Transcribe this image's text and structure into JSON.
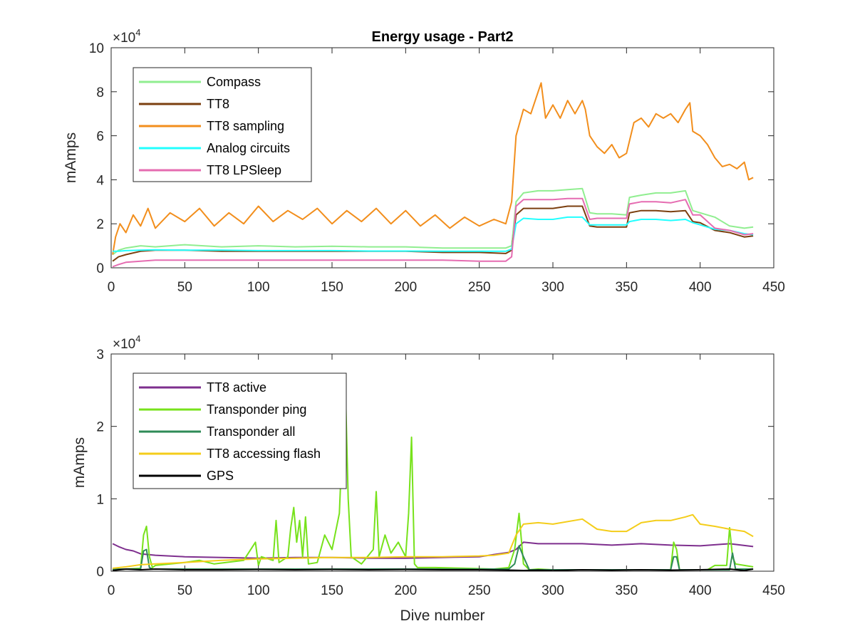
{
  "chart_data": [
    {
      "type": "line",
      "title": "Energy usage - Part2",
      "xlabel": "",
      "ylabel": "mAmps",
      "xlim": [
        0,
        450
      ],
      "ylim": [
        0,
        100000
      ],
      "xticks": [
        0,
        50,
        100,
        150,
        200,
        250,
        300,
        350,
        400,
        450
      ],
      "yticks": [
        0,
        2,
        4,
        6,
        8,
        10
      ],
      "ytick_scale": "×10^4",
      "grid": false,
      "legend_position": "top-left",
      "series": [
        {
          "name": "Compass",
          "color": "#90ee90",
          "x": [
            1,
            5,
            10,
            20,
            30,
            50,
            75,
            100,
            125,
            150,
            175,
            200,
            225,
            250,
            268,
            272,
            275,
            280,
            290,
            300,
            310,
            320,
            325,
            330,
            340,
            350,
            352,
            360,
            370,
            380,
            390,
            395,
            400,
            410,
            420,
            430,
            436
          ],
          "y": [
            6000,
            8000,
            9000,
            10000,
            9500,
            10500,
            9500,
            10000,
            9500,
            9800,
            9500,
            9500,
            9000,
            9000,
            9000,
            10000,
            30000,
            34000,
            35000,
            35000,
            35500,
            36000,
            25000,
            24500,
            24500,
            24000,
            32000,
            33000,
            34000,
            34000,
            35000,
            26000,
            25000,
            23000,
            19000,
            18000,
            18500
          ]
        },
        {
          "name": "TT8",
          "color": "#7b3f0f",
          "x": [
            1,
            5,
            10,
            20,
            30,
            50,
            75,
            100,
            125,
            150,
            175,
            200,
            225,
            250,
            268,
            272,
            275,
            280,
            290,
            300,
            310,
            320,
            325,
            330,
            340,
            350,
            352,
            360,
            370,
            380,
            390,
            395,
            400,
            410,
            420,
            430,
            436
          ],
          "y": [
            3000,
            5000,
            6000,
            7500,
            8000,
            8000,
            7500,
            7500,
            7500,
            7500,
            7500,
            7500,
            7000,
            7000,
            6500,
            8000,
            24000,
            27000,
            27000,
            27000,
            28000,
            28000,
            19000,
            18500,
            18500,
            18500,
            25000,
            26000,
            26000,
            25500,
            26000,
            21000,
            20500,
            17000,
            16000,
            14000,
            14500
          ]
        },
        {
          "name": "TT8 sampling",
          "color": "#f28e1c",
          "x": [
            1,
            3,
            6,
            10,
            15,
            20,
            25,
            30,
            40,
            50,
            60,
            70,
            80,
            90,
            100,
            110,
            120,
            130,
            140,
            150,
            160,
            170,
            180,
            190,
            200,
            210,
            220,
            230,
            240,
            250,
            260,
            268,
            272,
            275,
            280,
            285,
            290,
            292,
            295,
            300,
            305,
            310,
            315,
            320,
            322,
            325,
            330,
            335,
            340,
            345,
            350,
            355,
            360,
            365,
            370,
            375,
            380,
            385,
            390,
            393,
            395,
            400,
            405,
            410,
            415,
            420,
            425,
            430,
            433,
            436
          ],
          "y": [
            6000,
            14000,
            20000,
            16000,
            24000,
            19000,
            27000,
            18000,
            25000,
            21000,
            27000,
            19000,
            25000,
            20000,
            28000,
            21000,
            26000,
            22000,
            27000,
            20000,
            26000,
            21000,
            27000,
            20000,
            26000,
            19000,
            24000,
            18000,
            23000,
            19000,
            22000,
            20000,
            30000,
            60000,
            72000,
            70000,
            80000,
            84000,
            68000,
            74000,
            68000,
            76000,
            70000,
            76000,
            72000,
            60000,
            55000,
            52000,
            56000,
            50000,
            52000,
            66000,
            68000,
            64000,
            70000,
            68000,
            70000,
            66000,
            72000,
            75000,
            62000,
            60000,
            56000,
            50000,
            46000,
            47000,
            45000,
            48000,
            40000,
            41000
          ]
        },
        {
          "name": "Analog circuits",
          "color": "#22ffff",
          "x": [
            1,
            5,
            10,
            20,
            30,
            50,
            75,
            100,
            125,
            150,
            175,
            200,
            225,
            250,
            268,
            272,
            275,
            280,
            290,
            300,
            310,
            320,
            325,
            330,
            340,
            350,
            352,
            360,
            370,
            380,
            390,
            395,
            400,
            410,
            420,
            430,
            436
          ],
          "y": [
            7500,
            7500,
            7800,
            8000,
            8200,
            8000,
            8000,
            7800,
            7800,
            7800,
            7600,
            7600,
            7500,
            7500,
            7500,
            8500,
            20000,
            22500,
            22000,
            22000,
            23000,
            23000,
            19500,
            19500,
            19500,
            19500,
            21000,
            22000,
            22000,
            21500,
            22000,
            20500,
            19500,
            17500,
            17000,
            15500,
            15000
          ]
        },
        {
          "name": "TT8 LPSleep",
          "color": "#e56cb1",
          "x": [
            1,
            5,
            10,
            20,
            30,
            50,
            75,
            100,
            125,
            150,
            175,
            200,
            225,
            250,
            268,
            272,
            275,
            280,
            290,
            300,
            310,
            320,
            325,
            330,
            340,
            350,
            352,
            360,
            370,
            380,
            390,
            395,
            400,
            410,
            420,
            430,
            436
          ],
          "y": [
            500,
            1500,
            2500,
            3000,
            3500,
            3500,
            3500,
            3500,
            3500,
            3500,
            3500,
            3500,
            3500,
            3000,
            3000,
            5000,
            28000,
            31000,
            31000,
            31000,
            31500,
            31500,
            22000,
            22500,
            22500,
            22500,
            29000,
            30000,
            30000,
            29500,
            31000,
            24000,
            24000,
            18000,
            17000,
            15000,
            15500
          ]
        }
      ]
    },
    {
      "type": "line",
      "title": "",
      "xlabel": "Dive number",
      "ylabel": "mAmps",
      "xlim": [
        0,
        450
      ],
      "ylim": [
        0,
        30000
      ],
      "xticks": [
        0,
        50,
        100,
        150,
        200,
        250,
        300,
        350,
        400,
        450
      ],
      "yticks": [
        0,
        1,
        2,
        3
      ],
      "ytick_scale": "×10^4",
      "grid": false,
      "legend_position": "top-left",
      "series": [
        {
          "name": "TT8 active",
          "color": "#7e2f8e",
          "x": [
            1,
            5,
            10,
            15,
            20,
            30,
            50,
            75,
            100,
            125,
            150,
            175,
            200,
            225,
            250,
            260,
            270,
            275,
            280,
            290,
            300,
            320,
            340,
            360,
            380,
            400,
            420,
            436
          ],
          "y": [
            3800,
            3400,
            3000,
            2800,
            2400,
            2200,
            2000,
            1900,
            1800,
            1900,
            1900,
            1800,
            1800,
            1900,
            2000,
            2300,
            2600,
            3000,
            4000,
            3800,
            3800,
            3800,
            3600,
            3800,
            3600,
            3500,
            3800,
            3400
          ]
        },
        {
          "name": "Transponder ping",
          "color": "#77e21b",
          "x": [
            1,
            10,
            20,
            22,
            24,
            26,
            28,
            30,
            50,
            60,
            70,
            90,
            98,
            100,
            102,
            110,
            112,
            114,
            120,
            122,
            124,
            126,
            128,
            130,
            132,
            134,
            140,
            145,
            150,
            155,
            157,
            159,
            161,
            163,
            170,
            178,
            180,
            182,
            186,
            190,
            195,
            200,
            202,
            204,
            206,
            208,
            220,
            240,
            260,
            270,
            274,
            277,
            280,
            284,
            290,
            300,
            340,
            380,
            382,
            384,
            386,
            390,
            400,
            405,
            410,
            418,
            420,
            422,
            424,
            430,
            436
          ],
          "y": [
            200,
            300,
            400,
            5000,
            6200,
            2000,
            500,
            800,
            1200,
            1500,
            1000,
            1500,
            4000,
            800,
            2000,
            1500,
            7000,
            1200,
            2000,
            6000,
            8800,
            4000,
            7000,
            2000,
            7500,
            1000,
            1200,
            5000,
            3000,
            8000,
            18000,
            26000,
            10000,
            2000,
            1000,
            3000,
            11000,
            2000,
            5000,
            2500,
            4000,
            2000,
            8000,
            18500,
            1000,
            500,
            500,
            400,
            300,
            500,
            3000,
            8000,
            1000,
            200,
            300,
            200,
            200,
            200,
            4000,
            3000,
            200,
            200,
            200,
            200,
            800,
            800,
            6000,
            2000,
            1000,
            800,
            600
          ]
        },
        {
          "name": "Transponder all",
          "color": "#2e8b57",
          "x": [
            1,
            20,
            22,
            24,
            26,
            28,
            30,
            100,
            200,
            260,
            270,
            274,
            277,
            280,
            284,
            290,
            300,
            380,
            382,
            384,
            386,
            390,
            410,
            420,
            422,
            424,
            430,
            436
          ],
          "y": [
            300,
            300,
            2800,
            3000,
            500,
            300,
            300,
            300,
            300,
            300,
            300,
            1000,
            3500,
            2000,
            200,
            200,
            200,
            200,
            2000,
            2000,
            200,
            200,
            200,
            200,
            2500,
            300,
            300,
            300
          ]
        },
        {
          "name": "TT8 accessing flash",
          "color": "#f4cd1a",
          "x": [
            1,
            10,
            20,
            30,
            50,
            75,
            100,
            125,
            150,
            175,
            200,
            225,
            250,
            260,
            270,
            275,
            280,
            290,
            300,
            320,
            330,
            340,
            350,
            360,
            370,
            380,
            390,
            395,
            400,
            410,
            420,
            430,
            436
          ],
          "y": [
            400,
            600,
            900,
            1000,
            1200,
            1500,
            1700,
            1800,
            1900,
            1900,
            2000,
            2000,
            2100,
            2200,
            2500,
            5000,
            6500,
            6700,
            6500,
            7200,
            5800,
            5500,
            5500,
            6700,
            7000,
            7000,
            7500,
            7800,
            6500,
            6200,
            5800,
            5500,
            4800
          ]
        },
        {
          "name": "GPS",
          "color": "#000000",
          "x": [
            1,
            10,
            20,
            30,
            50,
            75,
            100,
            125,
            150,
            175,
            200,
            225,
            250,
            270,
            280,
            290,
            300,
            320,
            340,
            360,
            380,
            400,
            420,
            430,
            436
          ],
          "y": [
            100,
            300,
            200,
            300,
            200,
            200,
            250,
            200,
            250,
            200,
            250,
            200,
            200,
            150,
            100,
            150,
            100,
            200,
            150,
            200,
            150,
            200,
            300,
            100,
            300
          ]
        }
      ]
    }
  ]
}
